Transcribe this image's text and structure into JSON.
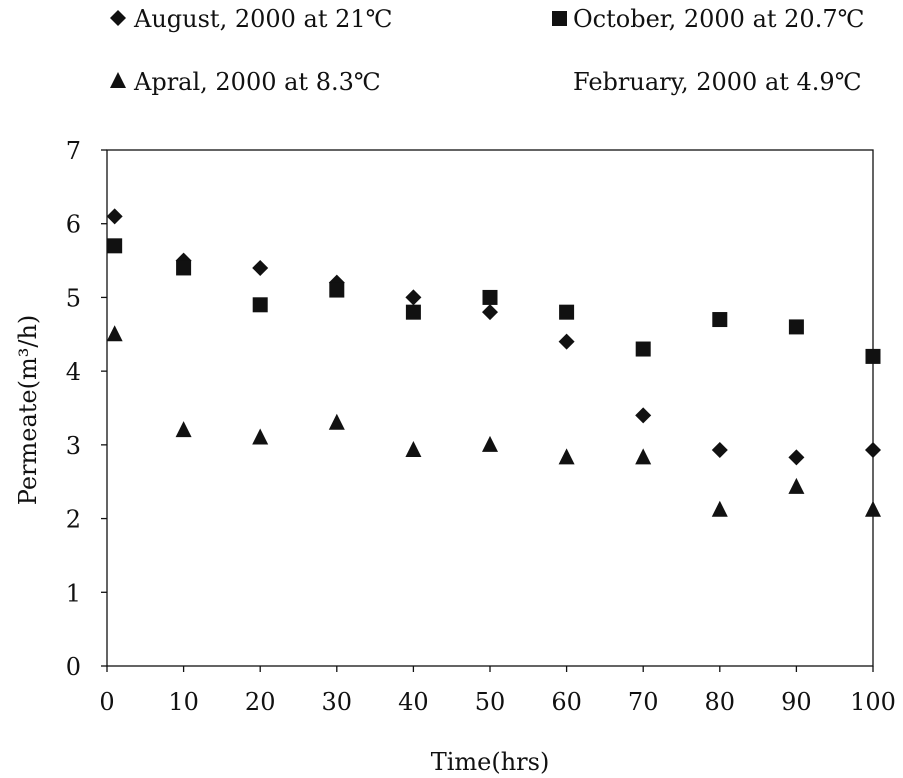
{
  "chart_data": {
    "type": "scatter",
    "title": "",
    "xlabel": "Time(hrs)",
    "ylabel": "Permeate(m³/h)",
    "xlim": [
      0,
      100
    ],
    "ylim": [
      0,
      7
    ],
    "x_ticks": [
      "0",
      "10",
      "20",
      "30",
      "40",
      "50",
      "60",
      "70",
      "80",
      "90",
      "100"
    ],
    "y_ticks": [
      "0",
      "1",
      "2",
      "3",
      "4",
      "5",
      "6",
      "7"
    ],
    "grid": false,
    "legend_position": "top",
    "series": [
      {
        "name": "August, 2000 at 21℃",
        "marker": "diamond",
        "x": [
          1,
          10,
          20,
          30,
          40,
          50,
          60,
          70,
          80,
          90,
          100
        ],
        "values": [
          6.1,
          5.5,
          5.4,
          5.2,
          5.0,
          4.8,
          4.4,
          3.4,
          2.93,
          2.83,
          2.93
        ]
      },
      {
        "name": "October, 2000 at 20.7℃",
        "marker": "square",
        "x": [
          1,
          10,
          20,
          30,
          40,
          50,
          60,
          70,
          80,
          90,
          100
        ],
        "values": [
          5.7,
          5.4,
          4.9,
          5.1,
          4.8,
          5.0,
          4.8,
          4.3,
          4.7,
          4.6,
          4.2
        ]
      },
      {
        "name": "Apral, 2000 at 8.3℃",
        "marker": "triangle",
        "x": [
          1,
          10,
          20,
          30,
          40,
          50,
          60,
          70,
          80,
          90,
          100
        ],
        "values": [
          4.5,
          3.2,
          3.1,
          3.3,
          2.93,
          3.0,
          2.83,
          2.83,
          2.12,
          2.43,
          2.12
        ]
      },
      {
        "name": "February, 2000 at 4.9℃",
        "marker": "none",
        "x": [],
        "values": []
      }
    ]
  }
}
